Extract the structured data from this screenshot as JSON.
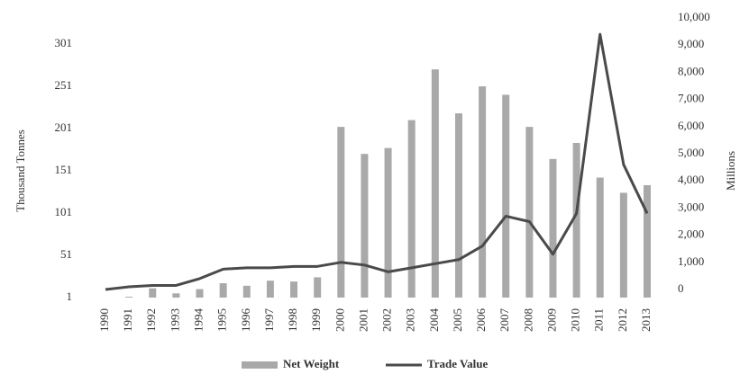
{
  "chart_data": {
    "type": "bar",
    "y_label": "Thousand Tonnes",
    "y2_label": "Millions",
    "categories": [
      "1990",
      "1991",
      "1992",
      "1993",
      "1994",
      "1995",
      "1996",
      "1997",
      "1998",
      "1999",
      "2000",
      "2001",
      "2002",
      "2003",
      "2004",
      "2005",
      "2006",
      "2007",
      "2008",
      "2009",
      "2010",
      "2011",
      "2012",
      "2013"
    ],
    "series": [
      {
        "name": "Net Weight",
        "type": "bar",
        "color": "#a9a9a9",
        "axis": "y",
        "values": [
          1,
          2,
          12,
          6,
          11,
          18,
          15,
          21,
          20,
          25,
          203,
          171,
          178,
          211,
          271,
          219,
          251,
          241,
          203,
          165,
          184,
          143,
          125,
          134
        ]
      },
      {
        "name": "Trade Value",
        "type": "line",
        "color": "#4a4a4a",
        "axis": "y2",
        "values": [
          0,
          100,
          150,
          150,
          400,
          750,
          800,
          800,
          850,
          850,
          1000,
          900,
          650,
          800,
          950,
          1100,
          1600,
          2700,
          2500,
          1300,
          2800,
          9400,
          4600,
          2800
        ]
      }
    ],
    "ylim": [
      1,
      301
    ],
    "yticks": [
      1,
      51,
      101,
      151,
      201,
      251,
      301
    ],
    "y2lim": [
      0,
      10000
    ],
    "y2ticks": [
      0,
      {
        "value": 1000,
        "label": "1,000"
      },
      {
        "value": 2000,
        "label": "2,000"
      },
      {
        "value": 3000,
        "label": "3,000"
      },
      {
        "value": 4000,
        "label": "4,000"
      },
      {
        "value": 5000,
        "label": "5,000"
      },
      {
        "value": 6000,
        "label": "6,000"
      },
      {
        "value": 7000,
        "label": "7,000"
      },
      {
        "value": 8000,
        "label": "8,000"
      },
      {
        "value": 9000,
        "label": "9,000"
      },
      {
        "value": 10000,
        "label": "10,000"
      }
    ],
    "grid": false,
    "legend": "bottom"
  }
}
